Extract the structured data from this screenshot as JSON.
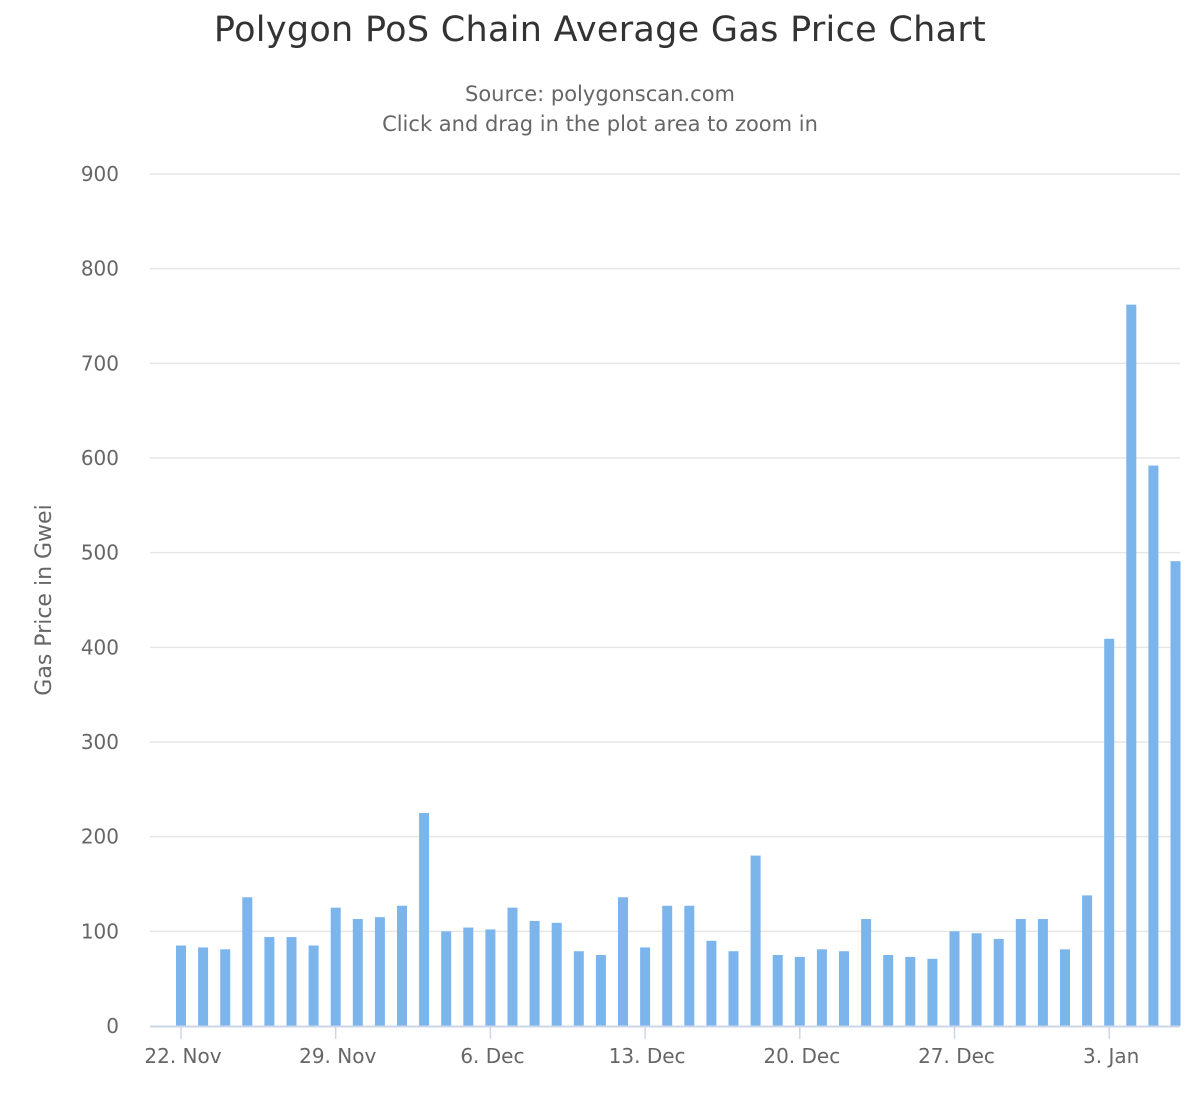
{
  "chart_data": {
    "type": "bar",
    "title": "Polygon PoS Chain Average Gas Price Chart",
    "subtitle": "Source: polygonscan.com",
    "subtitle2": "Click and drag in the plot area to zoom in",
    "ylabel": "Gas Price in Gwei",
    "xlabel": "",
    "ylim": [
      0,
      900
    ],
    "yticks": [
      0,
      100,
      200,
      300,
      400,
      500,
      600,
      700,
      800,
      900
    ],
    "x_start": "2021-11-22",
    "x_end": "2022-01-05",
    "xticks": [
      {
        "date": "2021-11-22",
        "label": "22. Nov"
      },
      {
        "date": "2021-11-29",
        "label": "29. Nov"
      },
      {
        "date": "2021-12-06",
        "label": "6. Dec"
      },
      {
        "date": "2021-12-13",
        "label": "13. Dec"
      },
      {
        "date": "2021-12-20",
        "label": "20. Dec"
      },
      {
        "date": "2021-12-27",
        "label": "27. Dec"
      },
      {
        "date": "2022-01-03",
        "label": "3. Jan"
      }
    ],
    "grid": true,
    "legend": "none",
    "bar_color": "#7cb5ec",
    "values": [
      85,
      83,
      81,
      136,
      94,
      94,
      85,
      125,
      113,
      115,
      127,
      225,
      100,
      104,
      102,
      125,
      111,
      109,
      79,
      75,
      136,
      83,
      127,
      127,
      90,
      79,
      180,
      75,
      73,
      81,
      79,
      113,
      75,
      73,
      71,
      100,
      98,
      92,
      113,
      113,
      81,
      138,
      409,
      762,
      592,
      491
    ]
  }
}
